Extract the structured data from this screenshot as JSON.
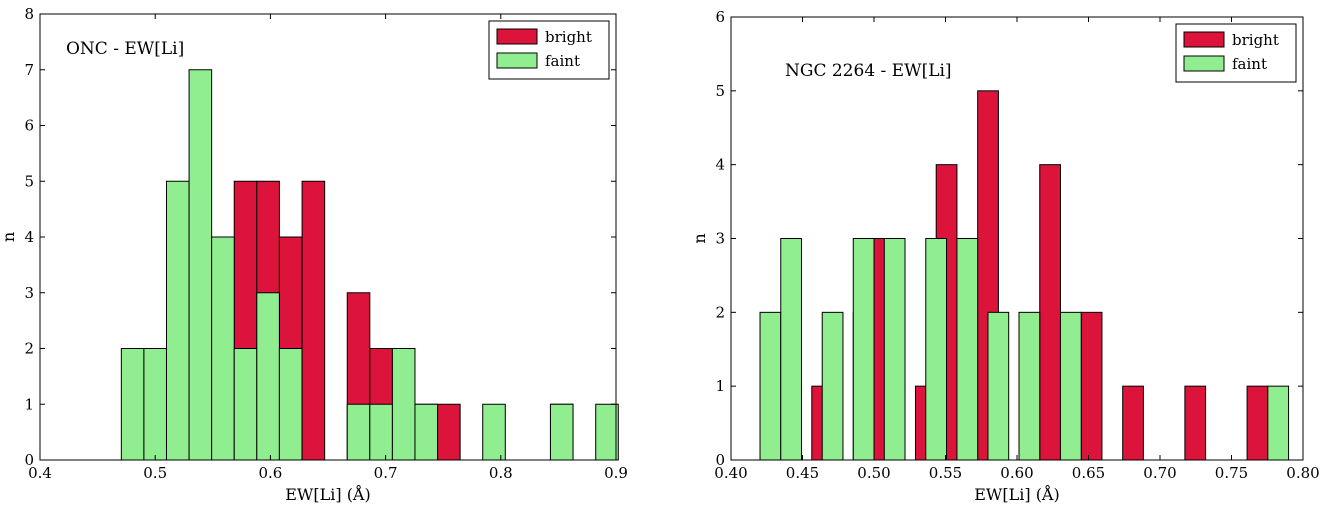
{
  "colors": {
    "bright": "#dc143c",
    "faint": "#90ee90",
    "edge": "#000000"
  },
  "chart_data": [
    {
      "type": "bar",
      "annotation": "ONC - EW[Li]",
      "xlabel": "EW[Li] (Å)",
      "ylabel": "n",
      "xlim": [
        0.4,
        0.9
      ],
      "ylim": [
        0,
        8
      ],
      "xticks": [
        "0.4",
        "0.5",
        "0.6",
        "0.7",
        "0.8",
        "0.9"
      ],
      "yticks": [
        "0",
        "1",
        "2",
        "3",
        "4",
        "5",
        "6",
        "7",
        "8"
      ],
      "bin_width": 0.0196,
      "legend": {
        "position": "top-right"
      },
      "series": [
        {
          "name": "bright",
          "x": [
            0.5098,
            0.5294,
            0.549,
            0.5686,
            0.5882,
            0.6078,
            0.6275,
            0.6667,
            0.6863,
            0.7059,
            0.7255,
            0.7451,
            0.8431
          ],
          "values": [
            1,
            3,
            3,
            5,
            5,
            4,
            5,
            3,
            2,
            1,
            1,
            1,
            1
          ]
        },
        {
          "name": "faint",
          "x": [
            0.4706,
            0.4902,
            0.5098,
            0.5294,
            0.549,
            0.5686,
            0.5882,
            0.6078,
            0.6667,
            0.6863,
            0.7059,
            0.7255,
            0.7843,
            0.8431,
            0.8824
          ],
          "values": [
            2,
            2,
            5,
            7,
            4,
            2,
            3,
            2,
            1,
            1,
            2,
            1,
            1,
            1,
            1
          ]
        }
      ]
    },
    {
      "type": "bar",
      "annotation": "NGC 2264 - EW[Li]",
      "xlabel": "EW[Li] (Å)",
      "ylabel": "n",
      "xlim": [
        0.4,
        0.8
      ],
      "ylim": [
        0,
        6
      ],
      "xticks": [
        "0.40",
        "0.45",
        "0.50",
        "0.55",
        "0.60",
        "0.65",
        "0.70",
        "0.75",
        "0.80"
      ],
      "yticks": [
        "0",
        "1",
        "2",
        "3",
        "4",
        "5",
        "6"
      ],
      "bin_width": 0.0145,
      "legend": {
        "position": "top-right"
      },
      "series": [
        {
          "name": "bright",
          "x": [
            0.4565,
            0.4855,
            0.5,
            0.529,
            0.5435,
            0.5725,
            0.6159,
            0.6449,
            0.6739,
            0.7174,
            0.7609
          ],
          "values": [
            1,
            2,
            3,
            1,
            4,
            5,
            4,
            2,
            1,
            1,
            1
          ]
        },
        {
          "name": "faint",
          "x": [
            0.4203,
            0.4348,
            0.4638,
            0.4855,
            0.5072,
            0.5362,
            0.558,
            0.5797,
            0.6014,
            0.6304,
            0.7754
          ],
          "values": [
            2,
            3,
            2,
            3,
            3,
            3,
            3,
            2,
            2,
            2,
            1
          ]
        }
      ]
    }
  ]
}
